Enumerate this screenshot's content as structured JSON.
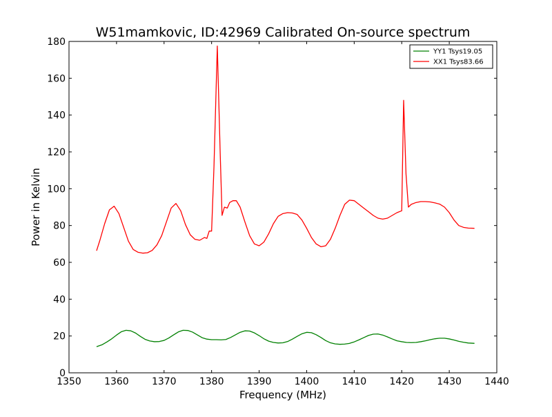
{
  "chart_data": {
    "type": "line",
    "title": "W51mamkovic, ID:42969 Calibrated On-source spectrum",
    "xlabel": "Frequency (MHz)",
    "ylabel": "Power in Kelvin",
    "xlim": [
      1350,
      1440
    ],
    "ylim": [
      0,
      180
    ],
    "xticks": [
      1350,
      1360,
      1370,
      1380,
      1390,
      1400,
      1410,
      1420,
      1430,
      1440
    ],
    "yticks": [
      0,
      20,
      40,
      60,
      80,
      100,
      120,
      140,
      160,
      180
    ],
    "grid": false,
    "legend_position": "top-right",
    "series": [
      {
        "name": "YY1 Tsys19.05",
        "color": "#008000",
        "x": [
          1355.8,
          1357,
          1358,
          1359,
          1360,
          1361,
          1362,
          1363,
          1364,
          1365,
          1366,
          1367,
          1368,
          1369,
          1370,
          1371,
          1372,
          1373,
          1374,
          1375,
          1376,
          1377,
          1378,
          1379,
          1380,
          1381,
          1382,
          1383,
          1384,
          1385,
          1386,
          1387,
          1388,
          1389,
          1390,
          1391,
          1392,
          1393,
          1394,
          1395,
          1396,
          1397,
          1398,
          1399,
          1400,
          1401,
          1402,
          1403,
          1404,
          1405,
          1406,
          1407,
          1408,
          1409,
          1410,
          1411,
          1412,
          1413,
          1414,
          1415,
          1416,
          1417,
          1418,
          1419,
          1420,
          1421,
          1422,
          1423,
          1424,
          1425,
          1426,
          1427,
          1428,
          1429,
          1430,
          1431,
          1432,
          1433,
          1434,
          1435.3
        ],
        "y": [
          14.2,
          15.3,
          16.8,
          18.5,
          20.5,
          22.3,
          23.1,
          22.8,
          21.6,
          19.8,
          18.2,
          17.3,
          16.9,
          17.0,
          17.6,
          18.9,
          20.6,
          22.2,
          23.1,
          23.0,
          22.1,
          20.6,
          19.1,
          18.3,
          18.0,
          18.0,
          17.9,
          18.1,
          19.2,
          20.6,
          22.0,
          22.8,
          22.7,
          21.7,
          20.2,
          18.5,
          17.2,
          16.5,
          16.2,
          16.3,
          17.0,
          18.3,
          19.8,
          21.2,
          22.0,
          21.8,
          20.7,
          19.2,
          17.5,
          16.3,
          15.7,
          15.5,
          15.6,
          16.0,
          16.8,
          17.9,
          19.1,
          20.3,
          21.0,
          21.1,
          20.5,
          19.5,
          18.4,
          17.4,
          16.9,
          16.5,
          16.4,
          16.5,
          16.9,
          17.4,
          18.0,
          18.5,
          18.8,
          18.8,
          18.4,
          17.8,
          17.1,
          16.6,
          16.2,
          16.0
        ]
      },
      {
        "name": "XX1 Tsys83.66",
        "color": "#ff0000",
        "x": [
          1355.8,
          1356.5,
          1357.5,
          1358.5,
          1359.5,
          1360.5,
          1361.5,
          1362.5,
          1363.5,
          1364.5,
          1365.5,
          1366.5,
          1367.5,
          1368.5,
          1369.5,
          1370.5,
          1371.5,
          1372.5,
          1373.5,
          1374.5,
          1375.5,
          1376.5,
          1377.5,
          1378.5,
          1379.0,
          1379.5,
          1380.0,
          1380.5,
          1381.2,
          1381.8,
          1382.2,
          1382.7,
          1383.3,
          1383.8,
          1384.5,
          1385.2,
          1386.0,
          1387.0,
          1388.0,
          1389.0,
          1390.0,
          1391.0,
          1392.0,
          1393.0,
          1394.0,
          1395.0,
          1396.0,
          1397.0,
          1398.0,
          1399.0,
          1400.0,
          1401.0,
          1402.0,
          1403.0,
          1404.0,
          1405.0,
          1406.0,
          1407.0,
          1408.0,
          1409.0,
          1410.0,
          1411.0,
          1412.0,
          1413.0,
          1414.0,
          1415.0,
          1416.0,
          1417.0,
          1418.0,
          1419.0,
          1420.0,
          1420.4,
          1420.9,
          1421.4,
          1422.0,
          1423.0,
          1424.0,
          1425.0,
          1426.0,
          1427.0,
          1428.0,
          1429.0,
          1430.0,
          1431.0,
          1432.0,
          1433.0,
          1434.0,
          1435.3
        ],
        "y": [
          66.3,
          72.0,
          81.0,
          88.5,
          90.5,
          86.5,
          79.0,
          71.5,
          67.0,
          65.5,
          65.0,
          65.2,
          66.5,
          69.5,
          74.5,
          82.0,
          89.5,
          92.0,
          88.0,
          80.5,
          75.0,
          72.5,
          72.0,
          73.5,
          73.0,
          77.0,
          77.0,
          112.0,
          177.5,
          120.0,
          85.5,
          90.0,
          89.5,
          92.5,
          93.5,
          93.5,
          90.0,
          82.0,
          74.5,
          70.0,
          69.0,
          71.0,
          75.5,
          81.0,
          85.0,
          86.5,
          87.0,
          86.8,
          86.0,
          83.0,
          78.5,
          73.5,
          70.0,
          68.5,
          69.0,
          72.5,
          78.5,
          85.5,
          91.5,
          93.8,
          93.5,
          91.5,
          89.5,
          87.5,
          85.5,
          84.0,
          83.5,
          84.0,
          85.5,
          87.0,
          88.0,
          148.0,
          108.0,
          90.0,
          91.5,
          92.5,
          93.0,
          93.0,
          92.8,
          92.3,
          91.6,
          90.0,
          87.0,
          83.0,
          80.0,
          79.0,
          78.6,
          78.5
        ]
      }
    ]
  }
}
